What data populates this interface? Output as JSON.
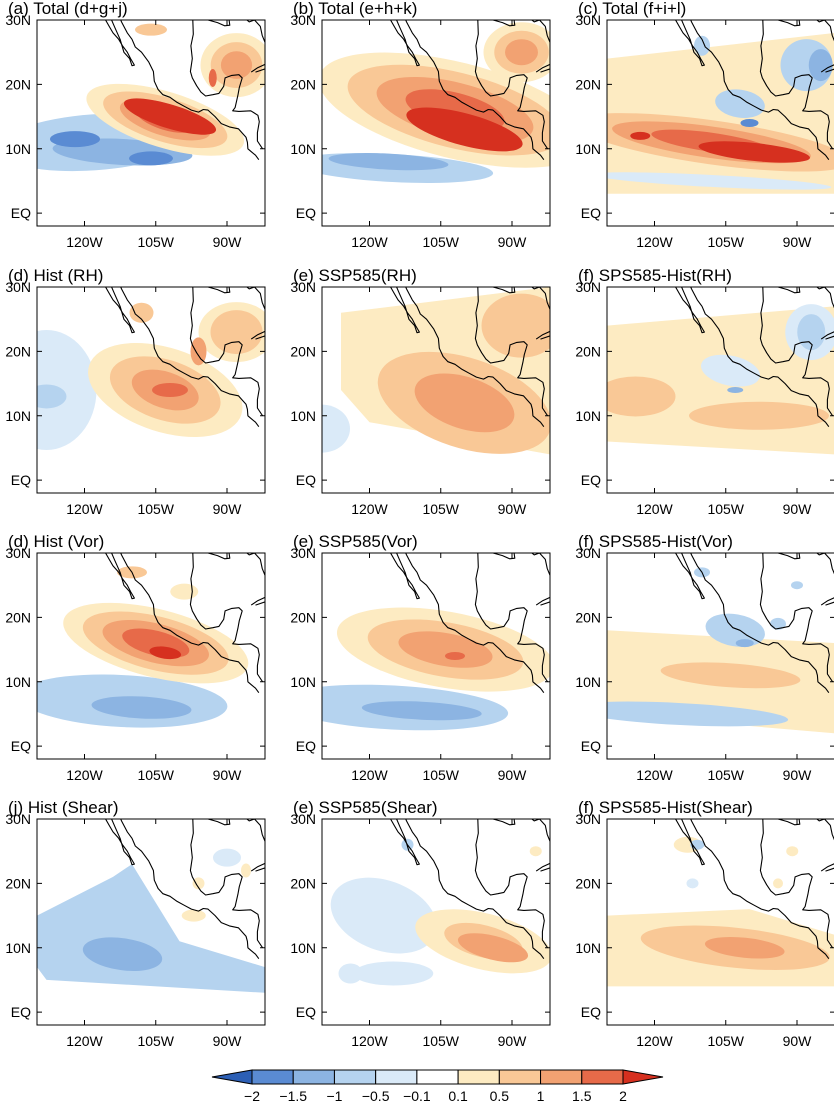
{
  "figure": {
    "panels": [
      {
        "id": "a",
        "title": "(a) Total (d+g+j)"
      },
      {
        "id": "b",
        "title": "(b) Total (e+h+k)"
      },
      {
        "id": "c",
        "title": "(c) Total (f+i+l)"
      },
      {
        "id": "d1",
        "title": "(d) Hist (RH)"
      },
      {
        "id": "e1",
        "title": "(e) SSP585(RH)"
      },
      {
        "id": "f1",
        "title": "(f) SPS585-Hist(RH)"
      },
      {
        "id": "d2",
        "title": "(d) Hist (Vor)"
      },
      {
        "id": "e2",
        "title": "(e) SSP585(Vor)"
      },
      {
        "id": "f2",
        "title": "(f) SPS585-Hist(Vor)"
      },
      {
        "id": "j",
        "title": "(j) Hist (Shear)"
      },
      {
        "id": "e3",
        "title": "(e) SSP585(Shear)"
      },
      {
        "id": "f3",
        "title": "(f) SPS585-Hist(Shear)"
      }
    ],
    "lat_ticks": [
      "30N",
      "20N",
      "10N",
      "EQ"
    ],
    "lon_ticks": [
      "120W",
      "105W",
      "90W"
    ],
    "colorbar": {
      "labels": [
        "−2",
        "−1.5",
        "−1",
        "−0.5",
        "−0.1",
        "0.1",
        "0.5",
        "1",
        "1.5",
        "2"
      ],
      "colors": [
        "#2c5fb5",
        "#5a8bd3",
        "#8cb4e2",
        "#b5d3ef",
        "#daeaf8",
        "#ffffff",
        "#fdebc2",
        "#f9c896",
        "#f2a272",
        "#e76a49",
        "#d6301f"
      ]
    }
  }
}
